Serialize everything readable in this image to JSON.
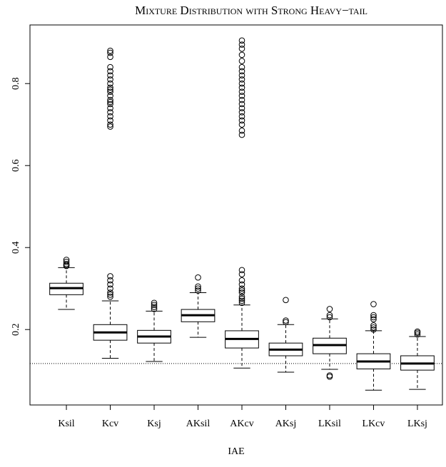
{
  "chart_data": {
    "type": "boxplot",
    "title": "Mixture Distribution with Strong Heavy−tail",
    "x_label": "IAE",
    "categories": [
      "Ksil",
      "Kcv",
      "Ksj",
      "AKsil",
      "AKcv",
      "AKsj",
      "LKsil",
      "LKcv",
      "LKsj"
    ],
    "boxes": [
      {
        "whisker_low": 0.249,
        "q1": 0.285,
        "median": 0.301,
        "q3": 0.313,
        "whisker_high": 0.351,
        "outliers": [
          0.355,
          0.357,
          0.36,
          0.365,
          0.37
        ]
      },
      {
        "whisker_low": 0.13,
        "q1": 0.174,
        "median": 0.193,
        "q3": 0.212,
        "whisker_high": 0.27,
        "outliers": [
          0.28,
          0.285,
          0.29,
          0.3,
          0.31,
          0.32,
          0.33,
          0.695,
          0.7,
          0.71,
          0.72,
          0.73,
          0.74,
          0.75,
          0.755,
          0.76,
          0.77,
          0.78,
          0.785,
          0.79,
          0.8,
          0.81,
          0.82,
          0.83,
          0.84,
          0.865,
          0.875,
          0.88
        ]
      },
      {
        "whisker_low": 0.122,
        "q1": 0.167,
        "median": 0.183,
        "q3": 0.198,
        "whisker_high": 0.245,
        "outliers": [
          0.25,
          0.255,
          0.26,
          0.265
        ]
      },
      {
        "whisker_low": 0.181,
        "q1": 0.219,
        "median": 0.235,
        "q3": 0.249,
        "whisker_high": 0.29,
        "outliers": [
          0.295,
          0.3,
          0.305,
          0.327
        ]
      },
      {
        "whisker_low": 0.106,
        "q1": 0.155,
        "median": 0.177,
        "q3": 0.197,
        "whisker_high": 0.26,
        "outliers": [
          0.265,
          0.27,
          0.275,
          0.28,
          0.29,
          0.295,
          0.3,
          0.31,
          0.32,
          0.335,
          0.345,
          0.675,
          0.685,
          0.7,
          0.71,
          0.72,
          0.73,
          0.74,
          0.75,
          0.76,
          0.77,
          0.78,
          0.79,
          0.8,
          0.81,
          0.82,
          0.83,
          0.84,
          0.855,
          0.87,
          0.885,
          0.895,
          0.905
        ]
      },
      {
        "whisker_low": 0.096,
        "q1": 0.136,
        "median": 0.151,
        "q3": 0.167,
        "whisker_high": 0.212,
        "outliers": [
          0.218,
          0.222,
          0.272
        ]
      },
      {
        "whisker_low": 0.103,
        "q1": 0.141,
        "median": 0.162,
        "q3": 0.179,
        "whisker_high": 0.226,
        "outliers": [
          0.085,
          0.088,
          0.23,
          0.235,
          0.25
        ]
      },
      {
        "whisker_low": 0.052,
        "q1": 0.104,
        "median": 0.122,
        "q3": 0.141,
        "whisker_high": 0.197,
        "outliers": [
          0.2,
          0.205,
          0.21,
          0.225,
          0.23,
          0.235,
          0.262
        ]
      },
      {
        "whisker_low": 0.054,
        "q1": 0.101,
        "median": 0.117,
        "q3": 0.136,
        "whisker_high": 0.183,
        "outliers": [
          0.188,
          0.192,
          0.195
        ]
      }
    ],
    "reference_line": 0.117,
    "ylim": [
      0.016,
      0.943
    ],
    "yticks": [
      0.2,
      0.4,
      0.6,
      0.8
    ]
  }
}
